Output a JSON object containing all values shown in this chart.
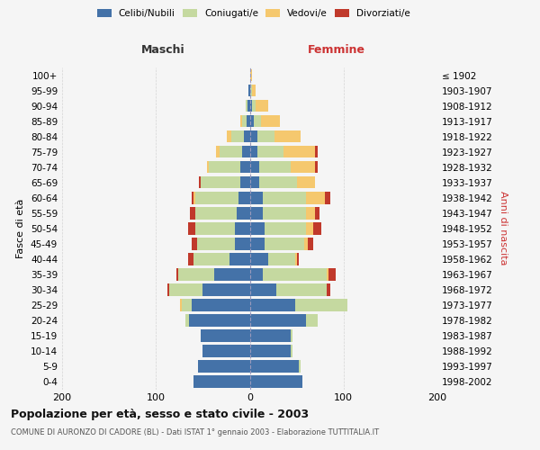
{
  "age_groups": [
    "0-4",
    "5-9",
    "10-14",
    "15-19",
    "20-24",
    "25-29",
    "30-34",
    "35-39",
    "40-44",
    "45-49",
    "50-54",
    "55-59",
    "60-64",
    "65-69",
    "70-74",
    "75-79",
    "80-84",
    "85-89",
    "90-94",
    "95-99",
    "100+"
  ],
  "birth_years": [
    "1998-2002",
    "1993-1997",
    "1988-1992",
    "1983-1987",
    "1978-1982",
    "1973-1977",
    "1968-1972",
    "1963-1967",
    "1958-1962",
    "1953-1957",
    "1948-1952",
    "1943-1947",
    "1938-1942",
    "1933-1937",
    "1928-1932",
    "1923-1927",
    "1918-1922",
    "1913-1917",
    "1908-1912",
    "1903-1907",
    "≤ 1902"
  ],
  "male_celibe": [
    60,
    55,
    50,
    52,
    65,
    62,
    50,
    38,
    22,
    16,
    16,
    14,
    12,
    10,
    10,
    8,
    6,
    3,
    2,
    1,
    0
  ],
  "male_coniugato": [
    0,
    0,
    0,
    0,
    4,
    10,
    36,
    38,
    38,
    40,
    42,
    44,
    46,
    42,
    34,
    24,
    14,
    5,
    2,
    0,
    0
  ],
  "male_vedovo": [
    0,
    0,
    0,
    0,
    0,
    2,
    0,
    0,
    0,
    0,
    0,
    0,
    2,
    0,
    2,
    4,
    4,
    2,
    0,
    0,
    0
  ],
  "male_divorziato": [
    0,
    0,
    0,
    0,
    0,
    0,
    2,
    2,
    6,
    6,
    8,
    6,
    2,
    2,
    0,
    0,
    0,
    0,
    0,
    0,
    0
  ],
  "female_celibe": [
    56,
    52,
    44,
    44,
    60,
    48,
    28,
    14,
    20,
    16,
    16,
    14,
    14,
    10,
    10,
    8,
    8,
    4,
    2,
    0,
    0
  ],
  "female_coniugato": [
    0,
    2,
    2,
    2,
    12,
    56,
    54,
    68,
    28,
    42,
    44,
    46,
    46,
    40,
    34,
    28,
    18,
    8,
    4,
    2,
    0
  ],
  "female_vedovo": [
    0,
    0,
    0,
    0,
    0,
    0,
    0,
    2,
    2,
    4,
    8,
    10,
    20,
    20,
    26,
    34,
    28,
    20,
    14,
    4,
    2
  ],
  "female_divorziato": [
    0,
    0,
    0,
    0,
    0,
    0,
    4,
    8,
    2,
    6,
    8,
    4,
    6,
    0,
    2,
    2,
    0,
    0,
    0,
    0,
    0
  ],
  "colors": {
    "celibe": "#4472a8",
    "coniugato": "#c5d9a0",
    "vedovo": "#f5c86e",
    "divorziato": "#c0392b"
  },
  "title": "Popolazione per età, sesso e stato civile - 2003",
  "subtitle": "COMUNE DI AURONZO DI CADORE (BL) - Dati ISTAT 1° gennaio 2003 - Elaborazione TUTTITALIA.IT",
  "xlabel_left": "Maschi",
  "xlabel_right": "Femmine",
  "ylabel_left": "Fasce di età",
  "ylabel_right": "Anni di nascita",
  "xlim": 200,
  "background_color": "#f5f5f5",
  "grid_color": "#cccccc"
}
